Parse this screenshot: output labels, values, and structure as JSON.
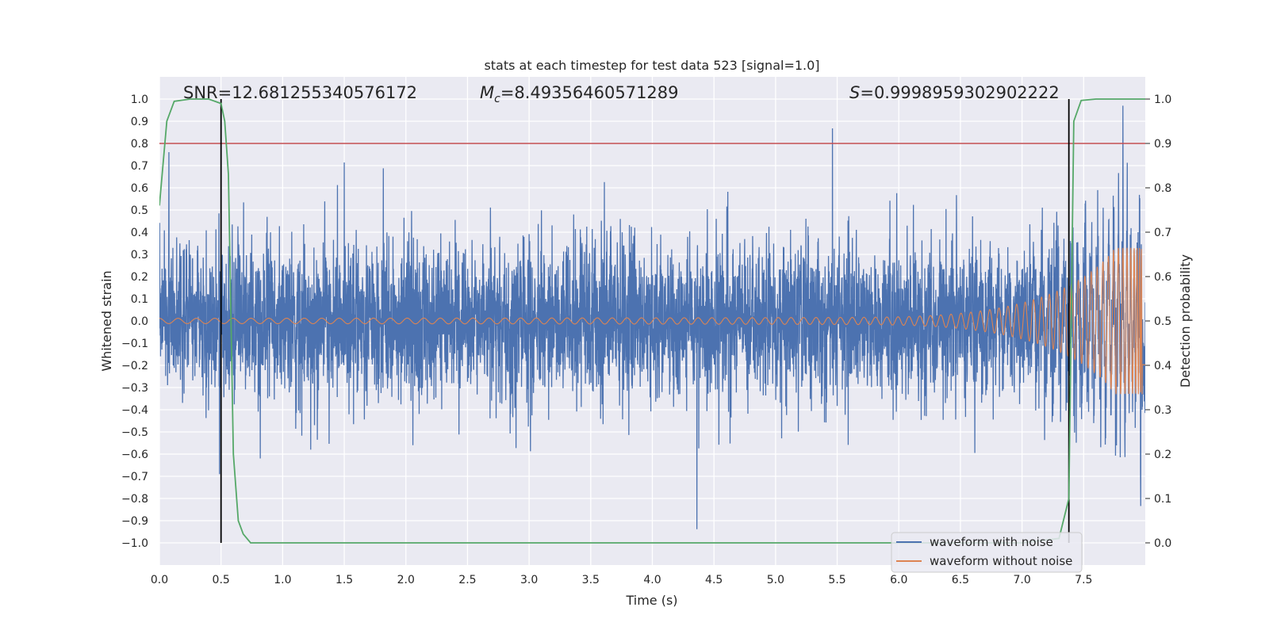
{
  "chart_data": {
    "type": "line",
    "title": "stats at each timestep for test data 523 [signal=1.0]",
    "xlabel": "Time (s)",
    "ylabel": "Whitened strain",
    "y2label": "Detection probability",
    "xlim": [
      0.0,
      8.0
    ],
    "ylim": [
      -1.1,
      1.1
    ],
    "y2lim": [
      -0.05,
      1.05
    ],
    "xticks": [
      "0.0",
      "0.5",
      "1.0",
      "1.5",
      "2.0",
      "2.5",
      "3.0",
      "3.5",
      "4.0",
      "4.5",
      "5.0",
      "5.5",
      "6.0",
      "6.5",
      "7.0",
      "7.5"
    ],
    "yticks": [
      "1.0",
      "0.9",
      "0.8",
      "0.7",
      "0.6",
      "0.5",
      "0.4",
      "0.3",
      "0.2",
      "0.1",
      "0.0",
      "−0.1",
      "−0.2",
      "−0.3",
      "−0.4",
      "−0.5",
      "−0.6",
      "−0.7",
      "−0.8",
      "−0.9",
      "−1.0"
    ],
    "y2ticks": [
      "1.0",
      "0.9",
      "0.8",
      "0.7",
      "0.6",
      "0.5",
      "0.4",
      "0.3",
      "0.2",
      "0.1",
      "0.0"
    ],
    "grid": true,
    "legend_placement": "lower-right",
    "annotations": {
      "snr": "SNR=12.681255340576172",
      "mc_symbol": "M",
      "mc_sub": "c",
      "mc_value": "=8.49356460571289",
      "s_symbol": "S",
      "s_value": "=0.9998959302902222"
    },
    "threshold": {
      "y2": 0.9,
      "color": "#c44e52"
    },
    "vlines": [
      0.5,
      7.38
    ],
    "series": [
      {
        "name": "waveform with noise",
        "color": "#4c72b0",
        "kind": "noise",
        "envelope_rms": 0.17,
        "peak_max": 0.97,
        "peak_min": -1.0
      },
      {
        "name": "waveform without noise",
        "color": "#dd8452",
        "kind": "chirp",
        "amplitude_start": 0.012,
        "amplitude_end": 0.33,
        "t_merge": 7.98
      },
      {
        "name": "",
        "color": "#55a868",
        "kind": "probability",
        "x": [
          0.0,
          0.06,
          0.12,
          0.25,
          0.4,
          0.5,
          0.53,
          0.56,
          0.6,
          0.64,
          0.68,
          0.74,
          0.8,
          1.5,
          3.0,
          4.5,
          6.0,
          7.0,
          7.3,
          7.38,
          7.42,
          7.48,
          7.6,
          8.0
        ],
        "y": [
          0.76,
          0.95,
          0.995,
          1.0,
          1.0,
          0.99,
          0.95,
          0.83,
          0.2,
          0.05,
          0.02,
          0.0,
          0.0,
          0.0,
          0.0,
          0.0,
          0.0,
          0.0,
          0.01,
          0.1,
          0.95,
          0.997,
          1.0,
          1.0
        ]
      }
    ]
  }
}
